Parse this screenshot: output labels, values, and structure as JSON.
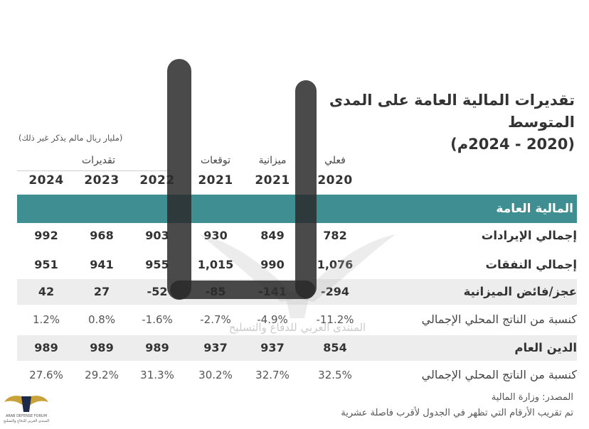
{
  "title_line1": "تقديرات المالية العامة على المدى المتوسط",
  "title_line2": "(2020 - 2024م)",
  "unit_note": "(مليار ريال مالم يذكر غير ذلك)",
  "group_label": "تقديرات",
  "columns": [
    {
      "sub": "فعلي",
      "year": "2020"
    },
    {
      "sub": "ميزانية",
      "year": "2021"
    },
    {
      "sub": "توقعات",
      "year": "2021"
    },
    {
      "sub": "",
      "year": "2022"
    },
    {
      "sub": "",
      "year": "2023"
    },
    {
      "sub": "",
      "year": "2024"
    }
  ],
  "section_title": "المالية العامة",
  "rows": [
    {
      "label": "إجمالي الإيرادات",
      "values": [
        "782",
        "849",
        "930",
        "903",
        "968",
        "992"
      ]
    },
    {
      "label": "إجمالي النفقات",
      "values": [
        "1,076",
        "990",
        "1,015",
        "955",
        "941",
        "951"
      ]
    },
    {
      "label": "عجز/فائض الميزانية",
      "values": [
        "-294",
        "-141",
        "-85",
        "-52",
        "27",
        "42"
      ]
    },
    {
      "label": "كنسبة من الناتج المحلي الإجمالي",
      "values": [
        "-11.2%",
        "-4.9%",
        "-2.7%",
        "-1.6%",
        "0.8%",
        "1.2%"
      ]
    },
    {
      "label": "الدين العام",
      "values": [
        "854",
        "937",
        "937",
        "989",
        "989",
        "989"
      ]
    },
    {
      "label": "كنسبة من الناتج المحلي الإجمالي",
      "values": [
        "32.5%",
        "32.7%",
        "30.2%",
        "31.3%",
        "29.2%",
        "27.6%"
      ]
    }
  ],
  "source": "المصدر: وزارة المالية",
  "note": "تم تقريب الأرقام التي تظهر في الجدول لأقرب فاصلة عشرية",
  "watermark": "المنتدى العربي للدفاع والتسليح",
  "logo_line1": "ARAB DEFENSE FORUM",
  "logo_line2": "المنتدى العربي للدفاع والتسليح",
  "colors": {
    "band": "#3e8e92",
    "shade": "#ededed",
    "marker": "#2a2a2a"
  }
}
